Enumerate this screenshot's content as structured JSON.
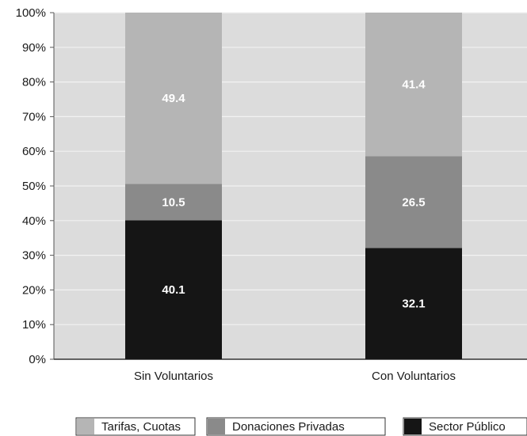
{
  "chart_data": {
    "type": "bar",
    "stacked": true,
    "categories": [
      "Sin Voluntarios",
      "Con Voluntarios"
    ],
    "series": [
      {
        "name": "Sector Público",
        "values": [
          40.1,
          32.1
        ],
        "color": "#151515"
      },
      {
        "name": "Donaciones Privadas",
        "values": [
          10.5,
          26.5
        ],
        "color": "#8a8a8a"
      },
      {
        "name": "Tarifas, Cuotas",
        "values": [
          49.4,
          41.4
        ],
        "color": "#b5b5b5"
      }
    ],
    "data_labels": [
      [
        "40.1",
        "32.1"
      ],
      [
        "10.5",
        "26.5"
      ],
      [
        "49.4",
        "41.4"
      ]
    ],
    "yticks": [
      "0%",
      "10%",
      "20%",
      "30%",
      "40%",
      "50%",
      "60%",
      "70%",
      "80%",
      "90%",
      "100%"
    ],
    "ylim": [
      0,
      100
    ],
    "grid": true,
    "plot_background": "#dcdcdc",
    "legend_order": [
      "Tarifas, Cuotas",
      "Donaciones Privadas",
      "Sector Público"
    ],
    "legend_position": "bottom",
    "title": "",
    "xlabel": "",
    "ylabel": ""
  }
}
